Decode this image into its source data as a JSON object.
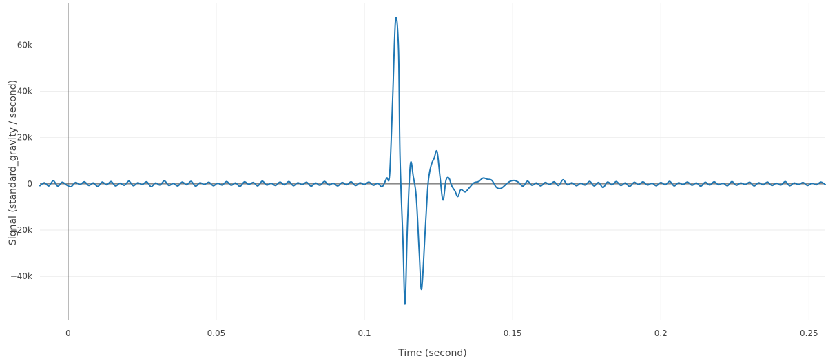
{
  "chart_data": {
    "type": "line",
    "title": "",
    "xlabel": "Time (second)",
    "ylabel": "Signal (standard_gravity / second)",
    "xlim": [
      -0.0095,
      0.2555
    ],
    "ylim": [
      -59000,
      78000
    ],
    "x_ticks": [
      {
        "value": 0,
        "label": "0"
      },
      {
        "value": 0.05,
        "label": "0.05"
      },
      {
        "value": 0.1,
        "label": "0.1"
      },
      {
        "value": 0.15,
        "label": "0.15"
      },
      {
        "value": 0.2,
        "label": "0.2"
      },
      {
        "value": 0.25,
        "label": "0.25"
      }
    ],
    "y_ticks": [
      {
        "value": 60000,
        "label": "60k"
      },
      {
        "value": 40000,
        "label": "40k"
      },
      {
        "value": 20000,
        "label": "20k"
      },
      {
        "value": 0,
        "label": "0"
      },
      {
        "value": -20000,
        "label": "−20k"
      },
      {
        "value": -40000,
        "label": "−40k"
      }
    ],
    "grid": true,
    "series": [
      {
        "color": "#1f77b4",
        "points": [
          [
            -0.0095,
            -800
          ],
          [
            -0.008,
            500
          ],
          [
            -0.0065,
            -900
          ],
          [
            -0.005,
            1400
          ],
          [
            -0.0035,
            -1000
          ],
          [
            -0.002,
            700
          ],
          [
            -0.0005,
            -500
          ],
          [
            0.001,
            -1200
          ],
          [
            0.0025,
            600
          ],
          [
            0.004,
            -300
          ],
          [
            0.0055,
            900
          ],
          [
            0.007,
            -700
          ],
          [
            0.0085,
            400
          ],
          [
            0.01,
            -1100
          ],
          [
            0.0115,
            800
          ],
          [
            0.013,
            -400
          ],
          [
            0.0145,
            1000
          ],
          [
            0.016,
            -900
          ],
          [
            0.0175,
            300
          ],
          [
            0.019,
            -600
          ],
          [
            0.0205,
            1200
          ],
          [
            0.022,
            -800
          ],
          [
            0.0235,
            500
          ],
          [
            0.025,
            -300
          ],
          [
            0.0265,
            900
          ],
          [
            0.028,
            -1200
          ],
          [
            0.0295,
            400
          ],
          [
            0.031,
            -500
          ],
          [
            0.0325,
            1300
          ],
          [
            0.034,
            -700
          ],
          [
            0.0355,
            200
          ],
          [
            0.037,
            -900
          ],
          [
            0.0385,
            800
          ],
          [
            0.04,
            -400
          ],
          [
            0.0415,
            1100
          ],
          [
            0.043,
            -1000
          ],
          [
            0.0445,
            500
          ],
          [
            0.046,
            -300
          ],
          [
            0.0475,
            700
          ],
          [
            0.049,
            -800
          ],
          [
            0.0505,
            300
          ],
          [
            0.052,
            -500
          ],
          [
            0.0535,
            1000
          ],
          [
            0.055,
            -600
          ],
          [
            0.0565,
            400
          ],
          [
            0.058,
            -1100
          ],
          [
            0.0595,
            900
          ],
          [
            0.061,
            -200
          ],
          [
            0.0625,
            600
          ],
          [
            0.064,
            -900
          ],
          [
            0.0655,
            1200
          ],
          [
            0.067,
            -500
          ],
          [
            0.0685,
            300
          ],
          [
            0.07,
            -700
          ],
          [
            0.0715,
            800
          ],
          [
            0.073,
            -400
          ],
          [
            0.0745,
            1000
          ],
          [
            0.076,
            -800
          ],
          [
            0.0775,
            500
          ],
          [
            0.079,
            -300
          ],
          [
            0.0805,
            700
          ],
          [
            0.082,
            -1000
          ],
          [
            0.0835,
            400
          ],
          [
            0.085,
            -600
          ],
          [
            0.0865,
            1100
          ],
          [
            0.088,
            -500
          ],
          [
            0.0895,
            300
          ],
          [
            0.091,
            -900
          ],
          [
            0.0925,
            600
          ],
          [
            0.094,
            -400
          ],
          [
            0.0955,
            900
          ],
          [
            0.097,
            -700
          ],
          [
            0.0985,
            500
          ],
          [
            0.1,
            -300
          ],
          [
            0.1015,
            800
          ],
          [
            0.103,
            -600
          ],
          [
            0.1045,
            300
          ],
          [
            0.106,
            -1200
          ],
          [
            0.1075,
            2500
          ],
          [
            0.1085,
            4000
          ],
          [
            0.1095,
            36000
          ],
          [
            0.1105,
            71000
          ],
          [
            0.1115,
            58000
          ],
          [
            0.112,
            12000
          ],
          [
            0.113,
            -25000
          ],
          [
            0.1137,
            -52000
          ],
          [
            0.1145,
            -18000
          ],
          [
            0.1155,
            8500
          ],
          [
            0.1165,
            3000
          ],
          [
            0.1175,
            -6000
          ],
          [
            0.1185,
            -30000
          ],
          [
            0.1193,
            -45500
          ],
          [
            0.1205,
            -20000
          ],
          [
            0.1215,
            500
          ],
          [
            0.1225,
            8000
          ],
          [
            0.1235,
            11000
          ],
          [
            0.1245,
            14000
          ],
          [
            0.1255,
            3000
          ],
          [
            0.1265,
            -7000
          ],
          [
            0.1275,
            1500
          ],
          [
            0.1285,
            2500
          ],
          [
            0.1295,
            -1000
          ],
          [
            0.1305,
            -3000
          ],
          [
            0.1315,
            -5500
          ],
          [
            0.1325,
            -2500
          ],
          [
            0.134,
            -3500
          ],
          [
            0.1355,
            -1500
          ],
          [
            0.137,
            500
          ],
          [
            0.1385,
            1000
          ],
          [
            0.14,
            2500
          ],
          [
            0.1415,
            2000
          ],
          [
            0.143,
            1500
          ],
          [
            0.1445,
            -1500
          ],
          [
            0.146,
            -2000
          ],
          [
            0.1475,
            -500
          ],
          [
            0.149,
            1000
          ],
          [
            0.1505,
            1500
          ],
          [
            0.152,
            700
          ],
          [
            0.1535,
            -1000
          ],
          [
            0.155,
            1200
          ],
          [
            0.1565,
            -600
          ],
          [
            0.158,
            400
          ],
          [
            0.1595,
            -900
          ],
          [
            0.161,
            600
          ],
          [
            0.1625,
            -300
          ],
          [
            0.164,
            900
          ],
          [
            0.1655,
            -700
          ],
          [
            0.167,
            1800
          ],
          [
            0.1685,
            -400
          ],
          [
            0.17,
            500
          ],
          [
            0.1715,
            -800
          ],
          [
            0.173,
            300
          ],
          [
            0.1745,
            -500
          ],
          [
            0.176,
            1100
          ],
          [
            0.1775,
            -900
          ],
          [
            0.179,
            600
          ],
          [
            0.1805,
            -1600
          ],
          [
            0.182,
            800
          ],
          [
            0.1835,
            -400
          ],
          [
            0.185,
            1000
          ],
          [
            0.1865,
            -700
          ],
          [
            0.188,
            400
          ],
          [
            0.1895,
            -1100
          ],
          [
            0.191,
            700
          ],
          [
            0.1925,
            -300
          ],
          [
            0.194,
            900
          ],
          [
            0.1955,
            -500
          ],
          [
            0.197,
            300
          ],
          [
            0.1985,
            -800
          ],
          [
            0.2,
            600
          ],
          [
            0.2015,
            -400
          ],
          [
            0.203,
            1100
          ],
          [
            0.2045,
            -900
          ],
          [
            0.206,
            500
          ],
          [
            0.2075,
            -300
          ],
          [
            0.209,
            800
          ],
          [
            0.2105,
            -600
          ],
          [
            0.212,
            400
          ],
          [
            0.2135,
            -1000
          ],
          [
            0.215,
            700
          ],
          [
            0.2165,
            -500
          ],
          [
            0.218,
            900
          ],
          [
            0.2195,
            -400
          ],
          [
            0.221,
            300
          ],
          [
            0.2225,
            -800
          ],
          [
            0.224,
            1000
          ],
          [
            0.2255,
            -600
          ],
          [
            0.227,
            400
          ],
          [
            0.2285,
            -300
          ],
          [
            0.23,
            700
          ],
          [
            0.2315,
            -900
          ],
          [
            0.233,
            500
          ],
          [
            0.2345,
            -400
          ],
          [
            0.236,
            800
          ],
          [
            0.2375,
            -700
          ],
          [
            0.239,
            300
          ],
          [
            0.2405,
            -500
          ],
          [
            0.242,
            1000
          ],
          [
            0.2435,
            -800
          ],
          [
            0.245,
            400
          ],
          [
            0.2465,
            -300
          ],
          [
            0.248,
            600
          ],
          [
            0.2495,
            -700
          ],
          [
            0.251,
            300
          ],
          [
            0.2525,
            -400
          ],
          [
            0.254,
            800
          ],
          [
            0.2555,
            -300
          ]
        ]
      }
    ]
  }
}
